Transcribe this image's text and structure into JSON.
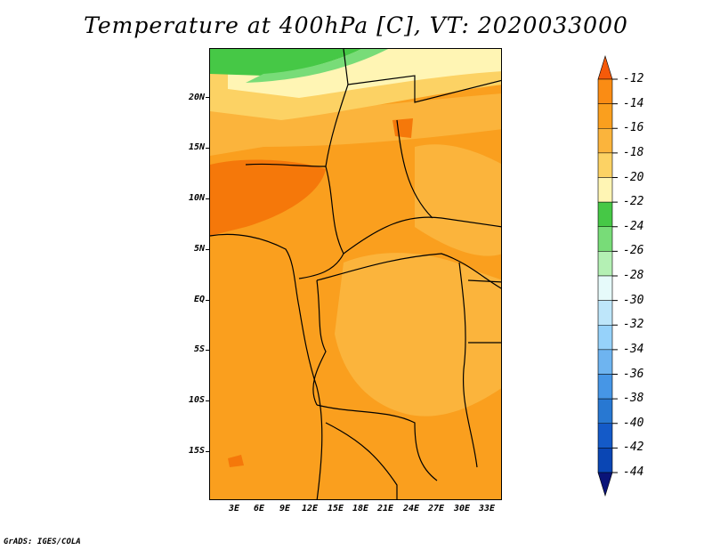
{
  "title": "Temperature at 400hPa [C], VT: 2020033000",
  "footer": "GrADS: IGES/COLA",
  "lat_labels": [
    "20N",
    "15N",
    "10N",
    "5N",
    "EQ",
    "5S",
    "10S",
    "15S"
  ],
  "lon_labels": [
    "3E",
    "6E",
    "9E",
    "12E",
    "15E",
    "18E",
    "21E",
    "24E",
    "27E",
    "30E",
    "33E"
  ],
  "colorbar": {
    "labels": [
      "-12",
      "-14",
      "-16",
      "-18",
      "-20",
      "-22",
      "-24",
      "-26",
      "-28",
      "-30",
      "-32",
      "-34",
      "-36",
      "-38",
      "-40",
      "-42",
      "-44"
    ],
    "colors": [
      "#f55a0a",
      "#fa8c14",
      "#fa9f1e",
      "#fbb43c",
      "#fcd264",
      "#fff5b4",
      "#46c846",
      "#78dc78",
      "#b4f0b4",
      "#e6fafa",
      "#bee6fa",
      "#96d2fa",
      "#6eb4f0",
      "#4696e6",
      "#2878d2",
      "#145ac8",
      "#0a46b4",
      "#0a1478"
    ]
  },
  "map_colors": {
    "base": "#fa9f1e",
    "light": "#fbb43c",
    "pale": "#fcd264",
    "cream": "#fff5b4",
    "warm": "#f5780a",
    "green": "#46c846",
    "lightgreen": "#78dc78"
  }
}
